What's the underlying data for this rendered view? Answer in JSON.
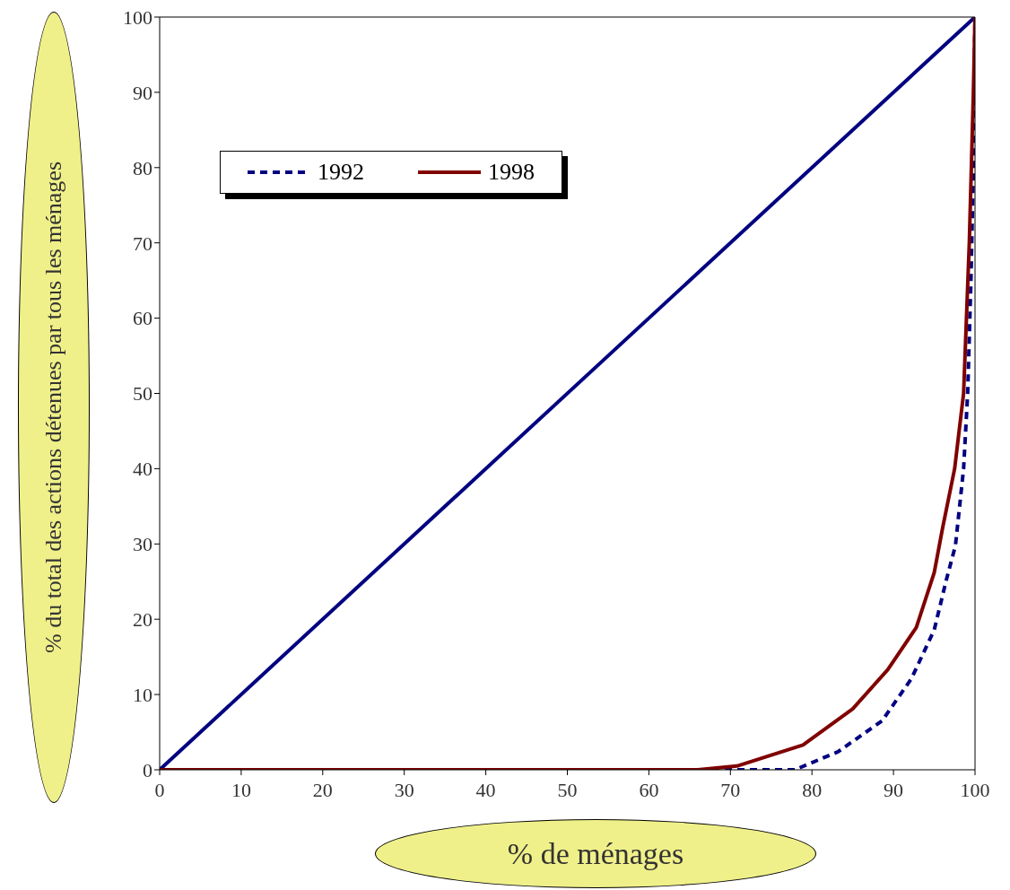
{
  "chart_data": {
    "type": "line",
    "xlabel": "% de ménages",
    "ylabel": "% du total des actions détenues par tous les ménages",
    "xlim": [
      0,
      100
    ],
    "ylim": [
      0,
      100
    ],
    "xticks": [
      0,
      10,
      20,
      30,
      40,
      50,
      60,
      70,
      80,
      90,
      100
    ],
    "yticks": [
      0,
      10,
      20,
      30,
      40,
      50,
      60,
      70,
      80,
      90,
      100
    ],
    "legend": "top left",
    "marker": "none",
    "series": [
      {
        "color": "#000080",
        "line_style": "solid",
        "x": [
          0,
          100
        ],
        "values": [
          0,
          100
        ]
      },
      {
        "name": "1992",
        "color": "#000080",
        "line_style": "dashed",
        "x": [
          0,
          70,
          77.9,
          83.2,
          88.6,
          92.2,
          95,
          96.5,
          97.6,
          98.6,
          99.1,
          99.5,
          99.8,
          100
        ],
        "values": [
          0,
          0,
          0,
          2.4,
          6.5,
          12.1,
          18.6,
          25.3,
          29.8,
          40,
          50,
          65,
          80,
          100
        ]
      },
      {
        "name": "1998",
        "color": "#800000",
        "line_style": "solid",
        "x": [
          0,
          66,
          70.8,
          78.9,
          85,
          89.3,
          92.8,
          95,
          96,
          97.5,
          98.6,
          99.3,
          99.8,
          100
        ],
        "values": [
          0,
          0,
          0.5,
          3.3,
          8.1,
          13.3,
          18.9,
          26.2,
          32,
          40,
          50,
          70,
          90,
          100
        ]
      }
    ]
  }
}
